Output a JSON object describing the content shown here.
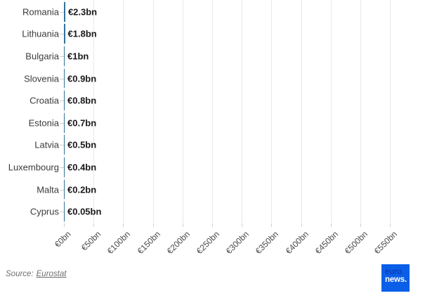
{
  "chart_data": {
    "type": "bar",
    "orientation": "horizontal",
    "title": "",
    "xlabel": "",
    "ylabel": "",
    "xlim": [
      0,
      550
    ],
    "grid": true,
    "legend": false,
    "categories": [
      "Romania",
      "Lithuania",
      "Bulgaria",
      "Slovenia",
      "Croatia",
      "Estonia",
      "Latvia",
      "Luxembourg",
      "Malta",
      "Cyprus"
    ],
    "values": [
      2.3,
      1.8,
      1,
      0.9,
      0.8,
      0.7,
      0.5,
      0.4,
      0.2,
      0.05
    ],
    "value_labels": [
      "€2.3bn",
      "€1.8bn",
      "€1bn",
      "€0.9bn",
      "€0.8bn",
      "€0.7bn",
      "€0.5bn",
      "€0.4bn",
      "€0.2bn",
      "€0.05bn"
    ],
    "x_tick_values": [
      0,
      50,
      100,
      150,
      200,
      250,
      300,
      350,
      400,
      450,
      500,
      550
    ],
    "x_ticks": [
      "€0bn",
      "€50bn",
      "€100bn",
      "€150bn",
      "€200bn",
      "€250bn",
      "€300bn",
      "€350bn",
      "€400bn",
      "€450bn",
      "€500bn",
      "€550bn"
    ],
    "bar_color": "#31729b",
    "grid_color": "#e9e9e9"
  },
  "footer": {
    "source_prefix": "Source:",
    "source_link_label": "Eurostat"
  },
  "logo": {
    "line1": "euro",
    "line2": "news.",
    "bg_color": "#0b5ee7",
    "line1_color": "#0a3fc0",
    "line2_color": "#ffffff"
  }
}
